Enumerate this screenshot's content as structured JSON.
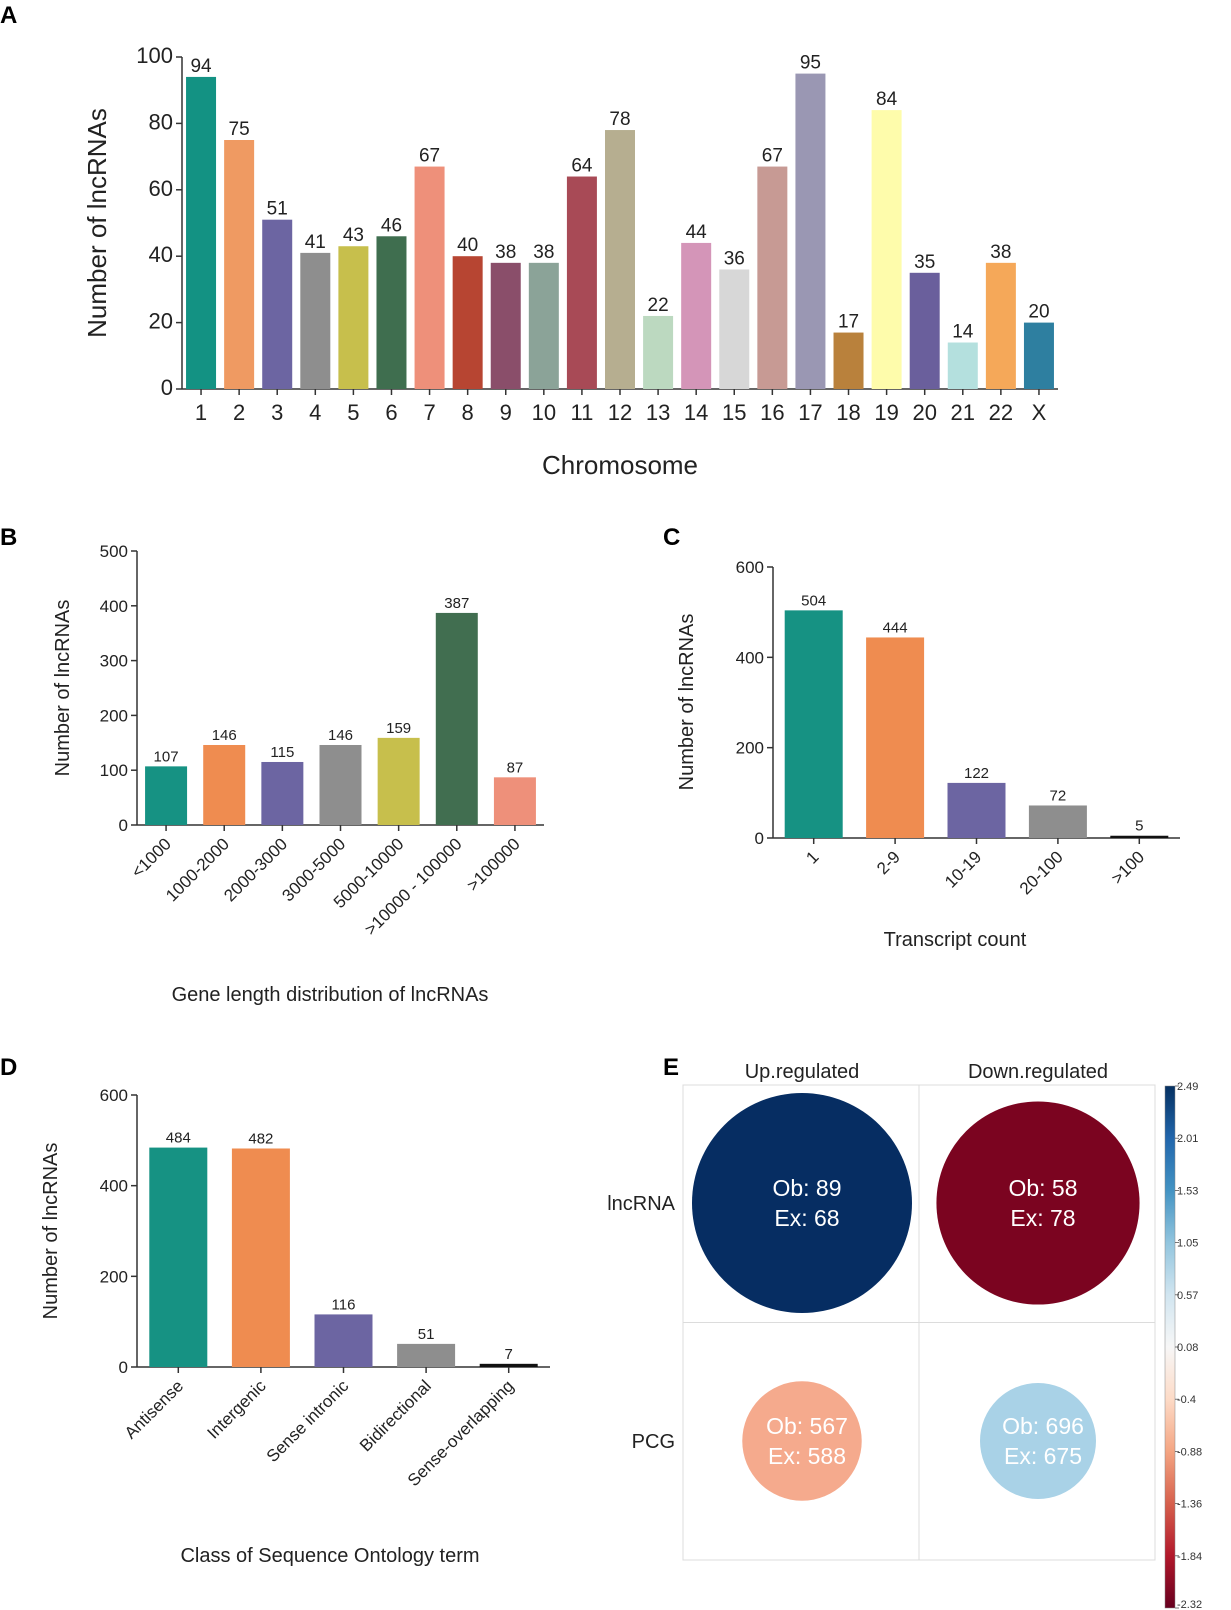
{
  "panels": {
    "A": "A",
    "B": "B",
    "C": "C",
    "D": "D",
    "E": "E"
  },
  "chart_data": [
    {
      "id": "A",
      "type": "bar",
      "title": "",
      "xlabel": "Chromosome",
      "ylabel": "Number of lncRNAs",
      "ylim": [
        0,
        100
      ],
      "yticks": [
        "0",
        "20",
        "40",
        "60",
        "80",
        "100"
      ],
      "categories": [
        "1",
        "2",
        "3",
        "4",
        "5",
        "6",
        "7",
        "8",
        "9",
        "10",
        "11",
        "12",
        "13",
        "14",
        "15",
        "16",
        "17",
        "18",
        "19",
        "20",
        "21",
        "22",
        "X"
      ],
      "values": [
        94,
        75,
        51,
        41,
        43,
        46,
        67,
        40,
        38,
        38,
        64,
        78,
        22,
        44,
        36,
        67,
        95,
        17,
        84,
        35,
        14,
        38,
        20
      ],
      "colors": [
        "#139283",
        "#ef9a62",
        "#6c65a2",
        "#8e8e8e",
        "#c7bf4c",
        "#3f6e4f",
        "#ee907a",
        "#b74532",
        "#8a4e6a",
        "#8ba398",
        "#a84a56",
        "#b6ae90",
        "#bcd9c0",
        "#d495b8",
        "#d7d7d7",
        "#c79a94",
        "#9a97b3",
        "#b9813c",
        "#fefcab",
        "#6a5f9c",
        "#b4e0de",
        "#f5a859",
        "#2e7fa0"
      ]
    },
    {
      "id": "B",
      "type": "bar",
      "title": "",
      "xlabel": "Gene length distribution of lncRNAs",
      "ylabel": "Number of lncRNAs",
      "ylim": [
        0,
        500
      ],
      "yticks": [
        "0",
        "100",
        "200",
        "300",
        "400",
        "500"
      ],
      "categories": [
        "<1000",
        "1000-2000",
        "2000-3000",
        "3000-5000",
        "5000-10000",
        ">10000 - 100000",
        ">100000"
      ],
      "values": [
        107,
        146,
        115,
        146,
        159,
        387,
        87
      ],
      "colors": [
        "#169283",
        "#ef8c50",
        "#6c65a2",
        "#8e8e8e",
        "#c7bf4c",
        "#416e50",
        "#ee907a"
      ]
    },
    {
      "id": "C",
      "type": "bar",
      "title": "",
      "xlabel": "Transcript count",
      "ylabel": "Number of lncRNAs",
      "ylim": [
        0,
        600
      ],
      "yticks": [
        "0",
        "200",
        "400",
        "600"
      ],
      "categories": [
        "1",
        "2-9",
        "10-19",
        "20-100",
        ">100"
      ],
      "values": [
        504,
        444,
        122,
        72,
        5
      ],
      "colors": [
        "#169283",
        "#ef8c50",
        "#6c65a2",
        "#8e8e8e",
        "#111111"
      ]
    },
    {
      "id": "D",
      "type": "bar",
      "title": "",
      "xlabel": "Class of Sequence Ontology term",
      "ylabel": "Number of lncRNAs",
      "ylim": [
        0,
        600
      ],
      "yticks": [
        "0",
        "200",
        "400",
        "600"
      ],
      "categories": [
        "Antisense",
        "Intergenic",
        "Sense intronic",
        "Bidirectional",
        "Sense-overlapping"
      ],
      "values": [
        484,
        482,
        116,
        51,
        7
      ],
      "colors": [
        "#169283",
        "#ef8c50",
        "#6c65a2",
        "#8e8e8e",
        "#111111"
      ]
    },
    {
      "id": "E",
      "type": "heatmap",
      "title": "",
      "columns": [
        "Up.regulated",
        "Down.regulated"
      ],
      "rows": [
        "lncRNA",
        "PCG"
      ],
      "cells": [
        [
          {
            "ob": 89,
            "ex": 68,
            "color": "#062d62",
            "text": "Ob: 89",
            "text2": "Ex: 68"
          },
          {
            "ob": 58,
            "ex": 78,
            "color": "#7b0420",
            "text": "Ob: 58",
            "text2": "Ex: 78"
          }
        ],
        [
          {
            "ob": 567,
            "ex": 588,
            "color": "#f5aa8d",
            "text": "Ob: 567",
            "text2": "Ex: 588"
          },
          {
            "ob": 696,
            "ex": 675,
            "color": "#a9d2e7",
            "text": "Ob: 696",
            "text2": "Ex: 675"
          }
        ]
      ],
      "colorbar": {
        "min": -2.32,
        "max": 2.49,
        "ticks": [
          "2.49",
          "2.01",
          "1.53",
          "1.05",
          "0.57",
          "0.08",
          "-0.4",
          "-0.88",
          "-1.36",
          "-1.84",
          "-2.32"
        ],
        "colors": [
          "#053061",
          "#2166ac",
          "#4393c3",
          "#92c5de",
          "#d1e5f0",
          "#f7f7f7",
          "#fddbc7",
          "#f4a582",
          "#d6604d",
          "#b2182b",
          "#67001f"
        ]
      }
    }
  ]
}
